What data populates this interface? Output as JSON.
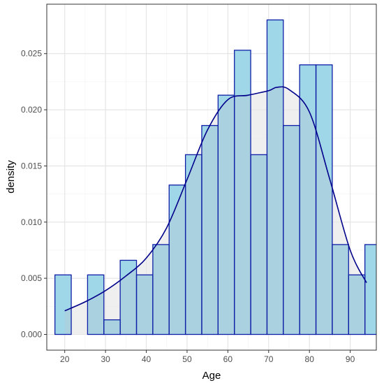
{
  "chart_data": {
    "type": "bar",
    "xlabel": "Age",
    "ylabel": "density",
    "xlim": [
      15.6,
      96.4
    ],
    "ylim": [
      -0.0014,
      0.0294
    ],
    "x_ticks": [
      20,
      30,
      40,
      50,
      60,
      70,
      80,
      90
    ],
    "x_tick_labels": [
      "20",
      "30",
      "40",
      "50",
      "60",
      "70",
      "80",
      "90"
    ],
    "y_ticks": [
      0.0,
      0.005,
      0.01,
      0.015,
      0.02,
      0.025
    ],
    "y_tick_labels": [
      "0.000",
      "0.005",
      "0.010",
      "0.015",
      "0.020",
      "0.025"
    ],
    "grid": true,
    "bins": [
      {
        "x0": 17.6,
        "x1": 21.6,
        "value": 0.0053
      },
      {
        "x0": 21.6,
        "x1": 25.6,
        "value": 0.0
      },
      {
        "x0": 25.6,
        "x1": 29.6,
        "value": 0.0053
      },
      {
        "x0": 29.6,
        "x1": 33.6,
        "value": 0.0013
      },
      {
        "x0": 33.6,
        "x1": 37.6,
        "value": 0.0066
      },
      {
        "x0": 37.6,
        "x1": 41.6,
        "value": 0.0053
      },
      {
        "x0": 41.6,
        "x1": 45.6,
        "value": 0.008
      },
      {
        "x0": 45.6,
        "x1": 49.6,
        "value": 0.0133
      },
      {
        "x0": 49.6,
        "x1": 53.6,
        "value": 0.016
      },
      {
        "x0": 53.6,
        "x1": 57.6,
        "value": 0.0186
      },
      {
        "x0": 57.6,
        "x1": 61.6,
        "value": 0.0213
      },
      {
        "x0": 61.6,
        "x1": 65.6,
        "value": 0.0253
      },
      {
        "x0": 65.6,
        "x1": 69.6,
        "value": 0.016
      },
      {
        "x0": 69.6,
        "x1": 73.6,
        "value": 0.028
      },
      {
        "x0": 73.6,
        "x1": 77.6,
        "value": 0.0186
      },
      {
        "x0": 77.6,
        "x1": 81.6,
        "value": 0.024
      },
      {
        "x0": 81.6,
        "x1": 85.6,
        "value": 0.024
      },
      {
        "x0": 85.6,
        "x1": 89.6,
        "value": 0.008
      },
      {
        "x0": 89.6,
        "x1": 93.6,
        "value": 0.0053
      },
      {
        "x0": 93.6,
        "x1": 97.6,
        "value": 0.008
      }
    ],
    "density": {
      "x": [
        20,
        25,
        30,
        35,
        40,
        45,
        50,
        55,
        60,
        65,
        70,
        72,
        75,
        80,
        85,
        90,
        94
      ],
      "y": [
        0.0021,
        0.0029,
        0.0039,
        0.0052,
        0.0068,
        0.0095,
        0.0138,
        0.0182,
        0.0209,
        0.0213,
        0.0217,
        0.022,
        0.0218,
        0.0198,
        0.0138,
        0.0075,
        0.0046
      ]
    },
    "colors": {
      "bar_fill": "#9fd7e8",
      "bar_stroke": "#0f1fa6",
      "density_fill": "#e6e6e6",
      "density_line": "#00008b",
      "overlap_fill": "#a9d1e0",
      "panel_border": "#333333",
      "grid_major": "#e3e3e3",
      "grid_minor": "#f2f2f2"
    }
  }
}
